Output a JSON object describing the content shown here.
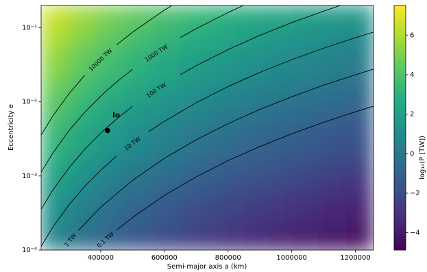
{
  "chart_data": {
    "type": "contour",
    "xlabel": "Semi-major axis a (km)",
    "ylabel": "Eccentricity e",
    "clabel": "log₁₀(P [TW])",
    "xlim": [
      213000,
      1257000
    ],
    "xticks": [
      400000,
      600000,
      800000,
      1000000,
      1200000
    ],
    "ylim": [
      0.0001,
      0.2
    ],
    "yscale": "log",
    "yticks": [
      {
        "value": 0.0001,
        "label": "10⁻⁴"
      },
      {
        "value": 0.001,
        "label": "10⁻³"
      },
      {
        "value": 0.01,
        "label": "10⁻²"
      },
      {
        "value": 0.1,
        "label": "10⁻¹"
      }
    ],
    "cmap": "viridis",
    "clim": [
      -4.88,
      7.5
    ],
    "cticks": [
      {
        "value": -4,
        "label": "−4"
      },
      {
        "value": -2,
        "label": "−2"
      },
      0,
      2,
      4,
      6
    ],
    "x_edges": [
      213000,
      300000,
      387000,
      474000,
      561000,
      648000,
      735000,
      822000,
      909000,
      996000,
      1083000,
      1170000,
      1257000
    ],
    "y_edges": [
      0.0001,
      0.0002,
      0.0005,
      0.001,
      0.002,
      0.005,
      0.01,
      0.02,
      0.05,
      0.1,
      0.2
    ],
    "z": [
      [
        0.59,
        -0.36,
        -1.09,
        -1.69,
        -2.2,
        -2.64,
        -3.02,
        -3.37,
        -3.68,
        -3.96,
        -4.23,
        -4.47
      ],
      [
        1.29,
        0.34,
        -0.39,
        -0.99,
        -1.5,
        -1.94,
        -2.32,
        -2.67,
        -2.98,
        -3.26,
        -3.53,
        -3.77
      ],
      [
        1.99,
        1.04,
        0.31,
        -0.29,
        -0.8,
        -1.24,
        -1.62,
        -1.97,
        -2.28,
        -2.56,
        -2.83,
        -3.07
      ],
      [
        2.59,
        1.64,
        0.91,
        0.31,
        -0.2,
        -0.64,
        -1.02,
        -1.37,
        -1.68,
        -1.96,
        -2.23,
        -2.47
      ],
      [
        3.29,
        2.34,
        1.61,
        1.01,
        0.5,
        0.06,
        -0.32,
        -0.67,
        -0.98,
        -1.26,
        -1.53,
        -1.77
      ],
      [
        3.99,
        3.04,
        2.31,
        1.71,
        1.2,
        0.76,
        0.38,
        0.03,
        -0.28,
        -0.56,
        -0.83,
        -1.07
      ],
      [
        4.59,
        3.64,
        2.91,
        2.31,
        1.8,
        1.36,
        0.98,
        0.63,
        0.32,
        0.04,
        -0.23,
        -0.47
      ],
      [
        5.29,
        4.34,
        3.61,
        3.01,
        2.5,
        2.06,
        1.68,
        1.33,
        1.02,
        0.74,
        0.47,
        0.23
      ],
      [
        5.99,
        5.04,
        4.31,
        3.71,
        3.2,
        2.76,
        2.38,
        2.03,
        1.72,
        1.44,
        1.17,
        0.93
      ],
      [
        6.59,
        5.64,
        4.91,
        4.31,
        3.8,
        3.36,
        2.98,
        2.63,
        2.32,
        2.04,
        1.77,
        1.53
      ]
    ],
    "contour_color": "#000000",
    "contours": [
      {
        "label": "10000 TW",
        "x": [
          213000,
          250000,
          300000,
          350000,
          null,
          450000,
          500000,
          600000,
          624000
        ],
        "y": [
          0.00356,
          0.00647,
          0.0128,
          0.0229,
          null,
          0.0587,
          0.0871,
          0.173,
          0.2
        ]
      },
      {
        "label": "1000 TW",
        "x": [
          213000,
          250000,
          300000,
          350000,
          400000,
          450000,
          500000,
          null,
          650000,
          700000,
          800000,
          848000
        ],
        "y": [
          0.001125,
          0.00205,
          0.00406,
          0.00724,
          0.01194,
          0.01858,
          0.0275,
          null,
          0.0738,
          0.0973,
          0.1607,
          0.2
        ]
      },
      {
        "label": "100 TW",
        "x": [
          213000,
          250000,
          300000,
          350000,
          400000,
          450000,
          500000,
          null,
          650000,
          700000,
          800000,
          900000,
          1000000,
          1100000,
          1153000
        ],
        "y": [
          0.000356,
          0.000648,
          0.00128,
          0.00229,
          0.00378,
          0.00587,
          0.00871,
          null,
          0.0233,
          0.0308,
          0.0508,
          0.0791,
          0.1173,
          0.1675,
          0.2
        ]
      },
      {
        "label": "10 TW",
        "x": [
          213000,
          250000,
          300000,
          350000,
          400000,
          450000,
          null,
          550000,
          600000,
          700000,
          800000,
          900000,
          1000000,
          1100000,
          1200000,
          1257000
        ],
        "y": [
          0.000112,
          0.000205,
          0.000406,
          0.000724,
          0.00119,
          0.00186,
          null,
          0.00395,
          0.00546,
          0.00973,
          0.0161,
          0.025,
          0.0371,
          0.053,
          0.0735,
          0.0875
        ]
      },
      {
        "label": "1 TW",
        "x": [
          281000,
          null,
          330000,
          400000,
          500000,
          600000,
          700000,
          800000,
          900000,
          1000000,
          1100000,
          1200000,
          1257000
        ],
        "y": [
          0.0001,
          null,
          0.000184,
          0.000378,
          0.000871,
          0.00173,
          0.00308,
          0.00508,
          0.00791,
          0.0117,
          0.0168,
          0.0232,
          0.0277
        ]
      },
      {
        "label": "0.1 TW",
        "x": [
          381000,
          null,
          450000,
          500000,
          600000,
          700000,
          800000,
          900000,
          1000000,
          1100000,
          1200000,
          1257000
        ],
        "y": [
          0.0001,
          null,
          0.000186,
          0.000275,
          0.000546,
          0.000973,
          0.00161,
          0.0025,
          0.00371,
          0.0053,
          0.00735,
          0.00875
        ]
      }
    ],
    "points": [
      {
        "label": "Io",
        "x": 421700,
        "y": 0.0041,
        "color": "#000000"
      }
    ]
  }
}
